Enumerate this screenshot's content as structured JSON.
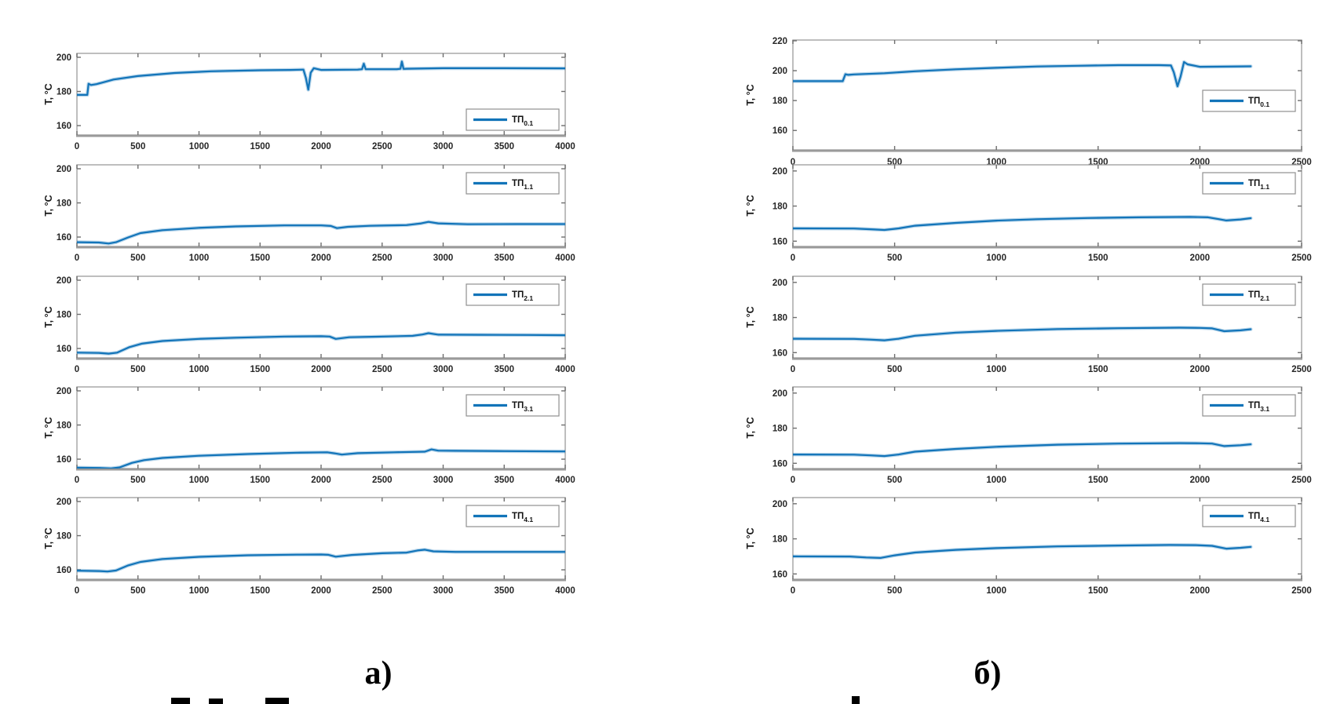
{
  "figure": {
    "panel_labels": {
      "left": "а)",
      "right": "б)"
    },
    "line_color": "#1274b9",
    "line_halo_color": "#1274b9",
    "axis_color": "#a3a3a3",
    "axis_bottom_color": "#9a9a9a",
    "tick_color": "#6e6e6e",
    "legend_border_color": "#8f8f8f",
    "tick_label_color": "#262626"
  },
  "chart_data": [
    {
      "id": "left-1",
      "type": "line",
      "title": "",
      "xlabel": "",
      "ylabel": "T, °C",
      "legend": {
        "base": "ТП",
        "sub": "0.1"
      },
      "legend_position": "inside-lower-right",
      "grid": false,
      "xlim": [
        0,
        4000
      ],
      "ylim": [
        154.5,
        202.3
      ],
      "xticks": [
        0,
        500,
        1000,
        1500,
        2000,
        2500,
        3000,
        3500,
        4000
      ],
      "yticks": [
        160,
        180,
        200
      ],
      "x": [
        0,
        85,
        95,
        115,
        160,
        300,
        500,
        800,
        1100,
        1500,
        1750,
        1855,
        1875,
        1895,
        1915,
        1940,
        2000,
        2300,
        2335,
        2350,
        2365,
        2620,
        2650,
        2662,
        2675,
        2700,
        3000,
        3500,
        4000
      ],
      "y": [
        178,
        178,
        184.5,
        183.8,
        184.3,
        187,
        189,
        190.8,
        191.8,
        192.4,
        192.6,
        192.8,
        188,
        181,
        191,
        193.6,
        192.6,
        192.8,
        193,
        196.3,
        193,
        193,
        193.3,
        197.5,
        193.2,
        193.3,
        193.6,
        193.6,
        193.5
      ]
    },
    {
      "id": "left-2",
      "type": "line",
      "title": "",
      "xlabel": "",
      "ylabel": "T, °C",
      "legend": {
        "base": "ТП",
        "sub": "1.1"
      },
      "legend_position": "inside-upper-right",
      "grid": false,
      "xlim": [
        0,
        4000
      ],
      "ylim": [
        154.5,
        202.3
      ],
      "xticks": [
        0,
        500,
        1000,
        1500,
        2000,
        2500,
        3000,
        3500,
        4000
      ],
      "yticks": [
        160,
        180,
        200
      ],
      "x": [
        0,
        180,
        260,
        320,
        420,
        520,
        700,
        1000,
        1300,
        1700,
        2000,
        2080,
        2130,
        2220,
        2400,
        2700,
        2820,
        2880,
        2960,
        3200,
        3600,
        4000
      ],
      "y": [
        157,
        156.8,
        156.2,
        157,
        159.8,
        162.3,
        164,
        165.4,
        166.2,
        166.8,
        166.8,
        166.5,
        165.2,
        166,
        166.6,
        167,
        168,
        168.9,
        168,
        167.5,
        167.6,
        167.6
      ]
    },
    {
      "id": "left-3",
      "type": "line",
      "title": "",
      "xlabel": "",
      "ylabel": "T, °C",
      "legend": {
        "base": "ТП",
        "sub": "2.1"
      },
      "legend_position": "inside-upper-right",
      "grid": false,
      "xlim": [
        0,
        4000
      ],
      "ylim": [
        154.5,
        202.3
      ],
      "xticks": [
        0,
        500,
        1000,
        1500,
        2000,
        2500,
        3000,
        3500,
        4000
      ],
      "yticks": [
        160,
        180,
        200
      ],
      "x": [
        0,
        180,
        260,
        330,
        430,
        530,
        700,
        1000,
        1300,
        1700,
        2000,
        2070,
        2120,
        2230,
        2450,
        2750,
        2830,
        2880,
        2960,
        3300,
        3700,
        4000
      ],
      "y": [
        157.6,
        157.4,
        157,
        157.6,
        160.8,
        162.8,
        164.4,
        165.6,
        166.3,
        167,
        167.2,
        167,
        165.6,
        166.6,
        166.9,
        167.4,
        168.2,
        169,
        168.1,
        168,
        167.9,
        167.8
      ]
    },
    {
      "id": "left-4",
      "type": "line",
      "title": "",
      "xlabel": "",
      "ylabel": "T, °C",
      "legend": {
        "base": "ТП",
        "sub": "3.1"
      },
      "legend_position": "inside-upper-right",
      "grid": false,
      "xlim": [
        0,
        4000
      ],
      "ylim": [
        154.5,
        202.3
      ],
      "xticks": [
        0,
        500,
        1000,
        1500,
        2000,
        2500,
        3000,
        3500,
        4000
      ],
      "yticks": [
        160,
        180,
        200
      ],
      "x": [
        0,
        200,
        280,
        350,
        450,
        550,
        700,
        1000,
        1400,
        1800,
        2050,
        2110,
        2170,
        2300,
        2600,
        2850,
        2905,
        2960,
        3100,
        3500,
        4000
      ],
      "y": [
        155,
        154.8,
        154.6,
        155.2,
        157.8,
        159.4,
        160.7,
        162,
        163,
        163.8,
        164,
        163.4,
        162.7,
        163.5,
        164,
        164.4,
        165.7,
        165,
        164.9,
        164.7,
        164.5
      ]
    },
    {
      "id": "left-5",
      "type": "line",
      "title": "",
      "xlabel": "",
      "ylabel": "T, °C",
      "legend": {
        "base": "ТП",
        "sub": "4.1"
      },
      "legend_position": "inside-upper-right",
      "grid": false,
      "xlim": [
        0,
        4000
      ],
      "ylim": [
        154.5,
        202.3
      ],
      "xticks": [
        0,
        500,
        1000,
        1500,
        2000,
        2500,
        3000,
        3500,
        4000
      ],
      "yticks": [
        160,
        180,
        200
      ],
      "x": [
        0,
        180,
        250,
        320,
        420,
        520,
        700,
        1000,
        1400,
        1800,
        2000,
        2060,
        2120,
        2250,
        2500,
        2700,
        2790,
        2850,
        2920,
        3100,
        3500,
        4000
      ],
      "y": [
        159.5,
        159.3,
        159,
        159.6,
        162.6,
        164.6,
        166.3,
        167.6,
        168.5,
        168.9,
        169,
        168.8,
        167.7,
        168.7,
        169.7,
        170.1,
        171.3,
        171.8,
        170.8,
        170.5,
        170.5,
        170.5
      ]
    },
    {
      "id": "right-1",
      "type": "line",
      "title": "",
      "xlabel": "",
      "ylabel": "T, °C",
      "legend": {
        "base": "ТП",
        "sub": "0.1"
      },
      "legend_position": "inside-lower-right",
      "grid": false,
      "xlim": [
        0,
        2500
      ],
      "ylim": [
        147,
        220.5
      ],
      "xticks": [
        0,
        500,
        1000,
        1500,
        2000,
        2500
      ],
      "yticks": [
        160,
        180,
        200,
        220
      ],
      "x": [
        0,
        245,
        258,
        272,
        300,
        450,
        600,
        800,
        1000,
        1200,
        1400,
        1600,
        1800,
        1858,
        1872,
        1890,
        1905,
        1922,
        1940,
        2000,
        2100,
        2250
      ],
      "y": [
        193,
        193,
        197.6,
        197.2,
        197.5,
        198.3,
        199.6,
        200.9,
        201.9,
        202.8,
        203.3,
        203.7,
        203.7,
        203.5,
        199,
        189.5,
        196,
        205.8,
        204.2,
        202.6,
        202.7,
        202.9
      ]
    },
    {
      "id": "right-2",
      "type": "line",
      "title": "",
      "xlabel": "",
      "ylabel": "T, °C",
      "legend": {
        "base": "ТП",
        "sub": "1.1"
      },
      "legend_position": "inside-upper-right",
      "grid": false,
      "xlim": [
        0,
        2500
      ],
      "ylim": [
        157,
        203.5
      ],
      "xticks": [
        0,
        500,
        1000,
        1500,
        2000,
        2500
      ],
      "yticks": [
        160,
        180,
        200
      ],
      "x": [
        0,
        300,
        380,
        450,
        520,
        600,
        800,
        1000,
        1200,
        1450,
        1700,
        1950,
        2040,
        2090,
        2130,
        2200,
        2250
      ],
      "y": [
        167.3,
        167.2,
        166.8,
        166.4,
        167.3,
        168.8,
        170.4,
        171.7,
        172.5,
        173.2,
        173.6,
        173.8,
        173.6,
        172.6,
        171.8,
        172.4,
        173.1
      ]
    },
    {
      "id": "right-3",
      "type": "line",
      "title": "",
      "xlabel": "",
      "ylabel": "T, °C",
      "legend": {
        "base": "ТП",
        "sub": "2.1"
      },
      "legend_position": "inside-upper-right",
      "grid": false,
      "xlim": [
        0,
        2500
      ],
      "ylim": [
        157,
        203.5
      ],
      "xticks": [
        0,
        500,
        1000,
        1500,
        2000,
        2500
      ],
      "yticks": [
        160,
        180,
        200
      ],
      "x": [
        0,
        300,
        380,
        450,
        520,
        600,
        800,
        1000,
        1300,
        1600,
        1900,
        2000,
        2060,
        2120,
        2200,
        2250
      ],
      "y": [
        167.9,
        167.8,
        167.4,
        167,
        167.9,
        169.6,
        171.4,
        172.4,
        173.4,
        173.9,
        174.2,
        174.1,
        173.8,
        172.2,
        172.7,
        173.3
      ]
    },
    {
      "id": "right-4",
      "type": "line",
      "title": "",
      "xlabel": "",
      "ylabel": "T, °C",
      "legend": {
        "base": "ТП",
        "sub": "3.1"
      },
      "legend_position": "inside-upper-right",
      "grid": false,
      "xlim": [
        0,
        2500
      ],
      "ylim": [
        157,
        203.5
      ],
      "xticks": [
        0,
        500,
        1000,
        1500,
        2000,
        2500
      ],
      "yticks": [
        160,
        180,
        200
      ],
      "x": [
        0,
        300,
        380,
        450,
        520,
        600,
        800,
        1000,
        1300,
        1600,
        1900,
        2000,
        2060,
        2120,
        2200,
        2250
      ],
      "y": [
        165,
        164.9,
        164.5,
        164.1,
        165,
        166.6,
        168.2,
        169.4,
        170.6,
        171.2,
        171.5,
        171.4,
        171.2,
        169.8,
        170.3,
        170.8
      ]
    },
    {
      "id": "right-5",
      "type": "line",
      "title": "",
      "xlabel": "",
      "ylabel": "T, °C",
      "legend": {
        "base": "ТП",
        "sub": "4.1"
      },
      "legend_position": "inside-upper-right",
      "grid": false,
      "xlim": [
        0,
        2500
      ],
      "ylim": [
        157,
        203.5
      ],
      "xticks": [
        0,
        500,
        1000,
        1500,
        2000,
        2500
      ],
      "yticks": [
        160,
        180,
        200
      ],
      "x": [
        0,
        280,
        360,
        430,
        500,
        600,
        800,
        1000,
        1300,
        1600,
        1850,
        1980,
        2060,
        2130,
        2200,
        2250
      ],
      "y": [
        170,
        169.9,
        169.4,
        169.1,
        170.6,
        172.2,
        173.7,
        174.7,
        175.7,
        176.2,
        176.5,
        176.4,
        176,
        174.4,
        174.9,
        175.4
      ]
    }
  ]
}
